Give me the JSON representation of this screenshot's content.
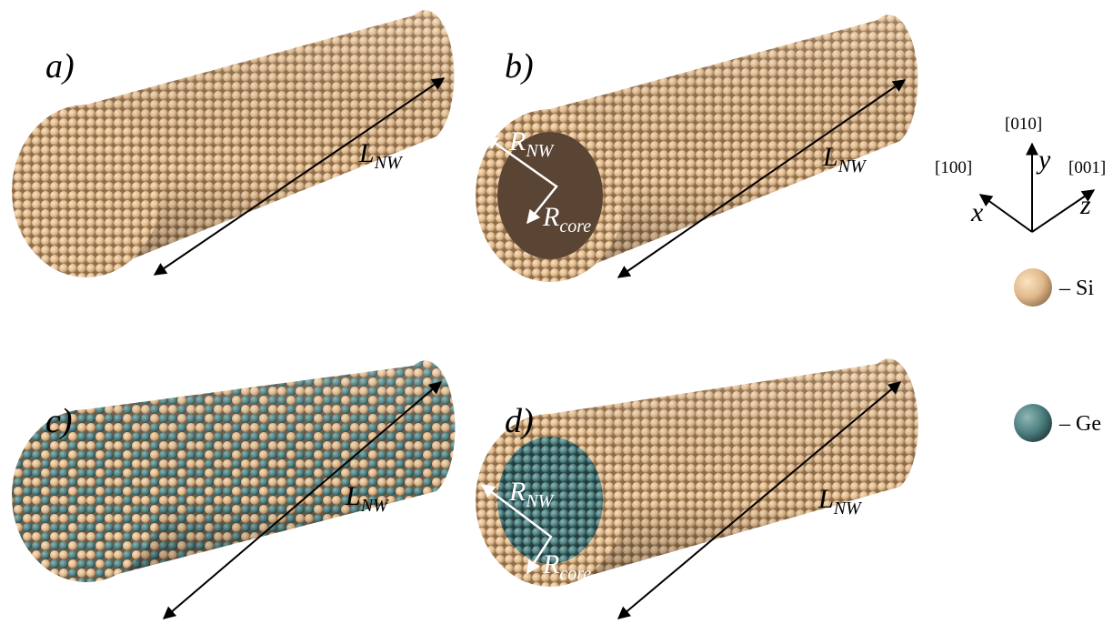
{
  "panels": [
    {
      "label": "a)",
      "length": {
        "symbol": "L",
        "subscript": "NW"
      }
    },
    {
      "label": "b)",
      "length": {
        "symbol": "L",
        "subscript": "NW"
      },
      "radius": {
        "symbol": "R",
        "subscript": "NW"
      },
      "core_radius": {
        "symbol": "R",
        "subscript": "core"
      }
    },
    {
      "label": "c)",
      "length": {
        "symbol": "L",
        "subscript": "NW"
      }
    },
    {
      "label": "d)",
      "length": {
        "symbol": "L",
        "subscript": "NW"
      },
      "radius": {
        "symbol": "R",
        "subscript": "NW"
      },
      "core_radius": {
        "symbol": "R",
        "subscript": "core"
      }
    }
  ],
  "axes": {
    "y": {
      "direction": "[010]",
      "symbol": "y"
    },
    "x": {
      "direction": "[100]",
      "symbol": "x"
    },
    "z": {
      "direction": "[001]",
      "symbol": "z"
    }
  },
  "legend": [
    {
      "label": "– Si"
    },
    {
      "label": "– Ge"
    }
  ]
}
